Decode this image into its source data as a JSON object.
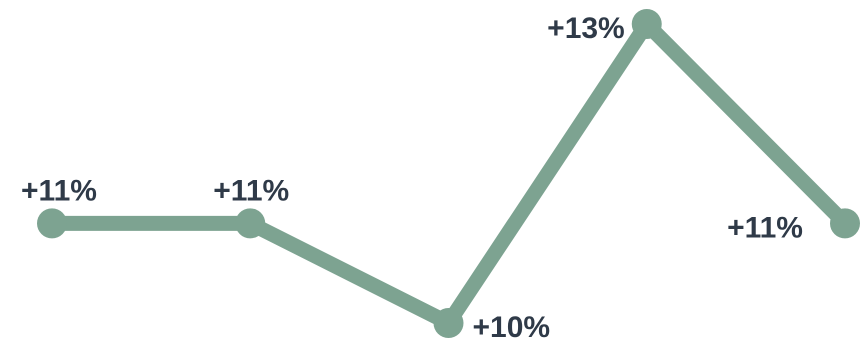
{
  "chart_data": {
    "type": "line",
    "x": [
      1,
      2,
      3,
      4,
      5
    ],
    "values": [
      11,
      11,
      10,
      13,
      11
    ],
    "data_labels": [
      "+11%",
      "+11%",
      "+10%",
      "+13%",
      "+11%"
    ],
    "title": "",
    "xlabel": "",
    "ylabel": "",
    "grid": false,
    "legend": "none",
    "line_color": "#7da391",
    "label_color": "#2f3a48"
  }
}
